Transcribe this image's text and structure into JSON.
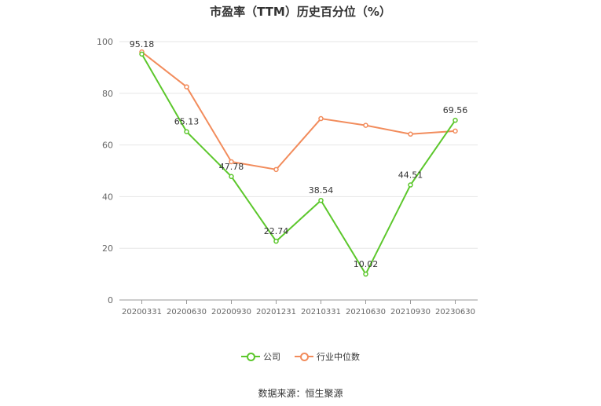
{
  "title": "市盈率（TTM）历史百分位（%）",
  "source": "数据来源：恒生聚源",
  "chart_data": {
    "type": "line",
    "categories": [
      "20200331",
      "20200630",
      "20200930",
      "20201231",
      "20210331",
      "20210630",
      "20210930",
      "20230630"
    ],
    "ylim": [
      0,
      100
    ],
    "yticks": [
      0,
      20,
      40,
      60,
      80,
      100
    ],
    "grid": true,
    "legend_position": "bottom",
    "series": [
      {
        "name": "公司",
        "color": "#5cc72c",
        "values": [
          95.18,
          65.13,
          47.78,
          22.74,
          38.54,
          10.02,
          44.51,
          69.56
        ],
        "labels": [
          "95.18",
          "65.13",
          "47.78",
          "22.74",
          "38.54",
          "10.02",
          "44.51",
          "69.56"
        ]
      },
      {
        "name": "行业中位数",
        "color": "#f28c5c",
        "values": [
          96.0,
          82.5,
          53.5,
          50.5,
          70.2,
          67.6,
          64.2,
          65.4
        ]
      }
    ]
  }
}
